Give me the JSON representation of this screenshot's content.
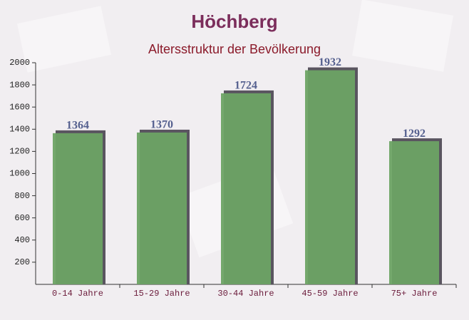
{
  "chart_data": {
    "type": "bar",
    "title": "Höchberg",
    "subtitle": "Altersstruktur der Bevölkerung",
    "categories": [
      "0-14 Jahre",
      "15-29 Jahre",
      "30-44 Jahre",
      "45-59 Jahre",
      "75+ Jahre"
    ],
    "values": [
      1364,
      1370,
      1724,
      1932,
      1292
    ],
    "color": "#6da364",
    "ylim": [
      0,
      2000
    ],
    "yticks": [
      200,
      400,
      600,
      800,
      1000,
      1200,
      1400,
      1600,
      1800,
      2000
    ]
  }
}
